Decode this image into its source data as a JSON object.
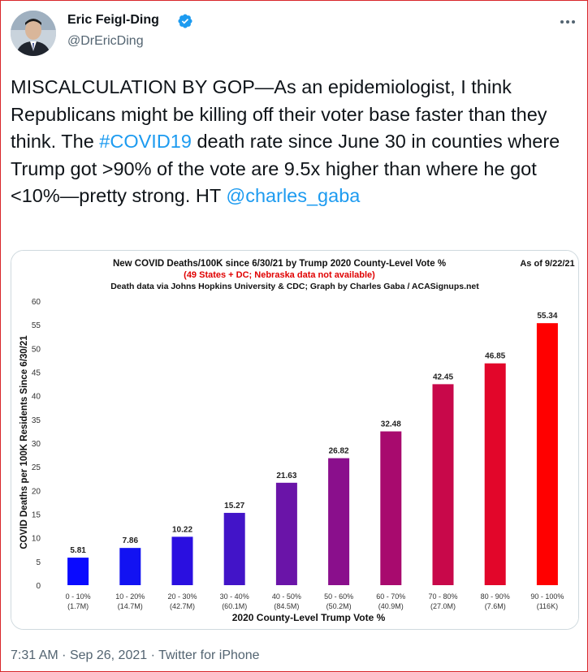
{
  "tweet": {
    "author_name": "Eric Feigl-Ding",
    "handle": "@DrEricDing",
    "text_part1": "MISCALCULATION BY GOP—As an epidemiologist, I think Republicans might be killing off their voter base faster than they think. The ",
    "hashtag": "#COVID19",
    "text_part2": " death rate since June 30 in counties where Trump got >90% of the vote are 9.5x higher than where he got <10%—pretty strong. HT ",
    "mention": "@charles_gaba",
    "time": "7:31 AM",
    "date": "Sep 26, 2021",
    "source": "Twitter for iPhone",
    "separator": "·",
    "colors": {
      "link": "#1d9bf0",
      "verified": "#1d9bf0",
      "text": "#0f1419",
      "muted": "#536471"
    }
  },
  "chart_data": {
    "type": "bar",
    "title": "New COVID Deaths/100K since 6/30/21 by Trump 2020 County-Level Vote %",
    "subtitle_red": "(49 States + DC; Nebraska data not available)",
    "subtitle_credit": "Death data via Johns Hopkins University & CDC; Graph by Charles Gaba / ACASignups.net",
    "as_of": "As of 9/22/21",
    "xlabel": "2020 County-Level Trump Vote %",
    "ylabel": "COVID Deaths per 100K Residents Since 6/30/21",
    "ylim": [
      0,
      60
    ],
    "yticks": [
      0,
      5,
      10,
      15,
      20,
      25,
      30,
      35,
      40,
      45,
      50,
      55,
      60
    ],
    "categories": [
      "0 - 10%",
      "10 - 20%",
      "20 - 30%",
      "30 - 40%",
      "40 - 50%",
      "50 - 60%",
      "60 - 70%",
      "70 - 80%",
      "80 - 90%",
      "90 - 100%"
    ],
    "populations": [
      "(1.7M)",
      "(14.7M)",
      "(42.7M)",
      "(60.1M)",
      "(84.5M)",
      "(50.2M)",
      "(40.9M)",
      "(27.0M)",
      "(7.6M)",
      "(116K)"
    ],
    "values": [
      5.81,
      7.86,
      10.22,
      15.27,
      21.63,
      26.82,
      32.48,
      42.45,
      46.85,
      55.34
    ],
    "labels": [
      "5.81",
      "7.86",
      "10.22",
      "15.27",
      "21.63",
      "26.82",
      "32.48",
      "42.45",
      "46.85",
      "55.34"
    ],
    "colors": [
      "#0a0aff",
      "#1212f2",
      "#2a0fe0",
      "#4214c8",
      "#6a14a8",
      "#8a0f8c",
      "#a80a6e",
      "#c8084a",
      "#e2062a",
      "#ff0000"
    ],
    "grid": false,
    "subtitle_color": "#e00000"
  }
}
